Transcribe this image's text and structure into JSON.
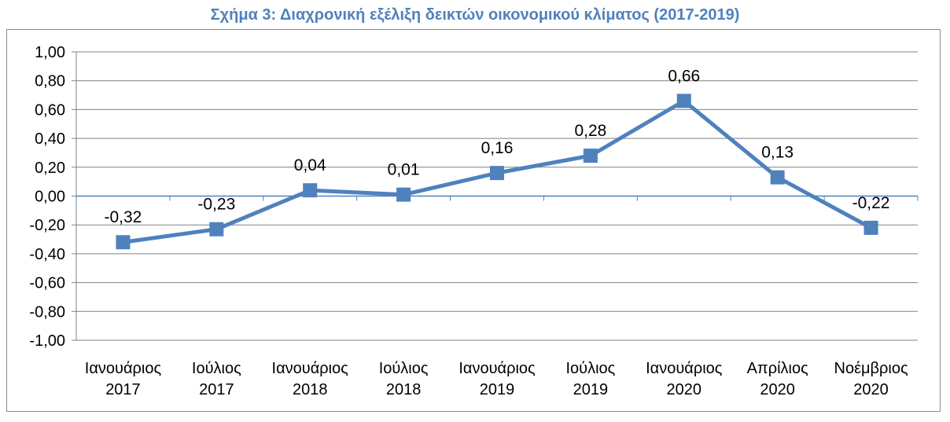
{
  "colors": {
    "title": "#4f81bd",
    "series": "#4f81bd",
    "grid": "#808080",
    "zero_line": "#4f81bd"
  },
  "chart_data": {
    "type": "line",
    "title": "Σχήμα 3: Διαχρονική εξέλιξη δεικτών οικονομικού κλίματος (2017-2019)",
    "xlabel": "",
    "ylabel": "",
    "categories": [
      [
        "Ιανουάριος",
        "2017"
      ],
      [
        "Ιούλιος",
        "2017"
      ],
      [
        "Ιανουάριος",
        "2018"
      ],
      [
        "Ιούλιος",
        "2018"
      ],
      [
        "Ιανουάριος",
        "2019"
      ],
      [
        "Ιούλιος",
        "2019"
      ],
      [
        "Ιανουάριος",
        "2020"
      ],
      [
        "Απρίλιος",
        "2020"
      ],
      [
        "Νοέμβριος",
        "2020"
      ]
    ],
    "series": [
      {
        "values": [
          -0.32,
          -0.23,
          0.04,
          0.01,
          0.16,
          0.28,
          0.66,
          0.13,
          -0.22
        ],
        "labels": [
          "-0,32",
          "-0,23",
          "0,04",
          "0,01",
          "0,16",
          "0,28",
          "0,66",
          "0,13",
          "-0,22"
        ]
      }
    ],
    "ylim": [
      -1.0,
      1.0
    ],
    "yticks": [
      1.0,
      0.8,
      0.6,
      0.4,
      0.2,
      0.0,
      -0.2,
      -0.4,
      -0.6,
      -0.8,
      -1.0
    ],
    "ytick_labels": [
      "1,00",
      "0,80",
      "0,60",
      "0,40",
      "0,20",
      "0,00",
      "-0,20",
      "-0,40",
      "-0,60",
      "-0,80",
      "-1,00"
    ],
    "grid": true,
    "marker": "square",
    "legend": "none"
  }
}
